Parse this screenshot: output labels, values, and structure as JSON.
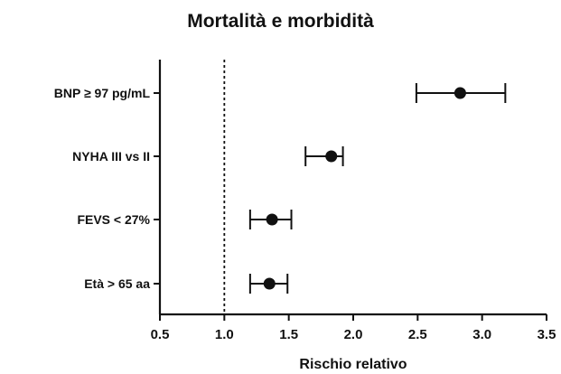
{
  "chart_data": {
    "type": "forest",
    "title": "Mortalità e morbidità",
    "xlabel": "Rischio relativo",
    "ylabel": "",
    "xlim": [
      0.5,
      3.5
    ],
    "x_ticks": [
      "0.5",
      "1.0",
      "1.5",
      "2.0",
      "2.5",
      "3.0",
      "3.5"
    ],
    "reference_line": 1.0,
    "grid": false,
    "series": [
      {
        "label": "BNP ≥ 97 pg/mL",
        "estimate": 2.83,
        "lower": 2.49,
        "upper": 3.18
      },
      {
        "label": "NYHA III vs II",
        "estimate": 1.83,
        "lower": 1.63,
        "upper": 1.92
      },
      {
        "label": "FEVS < 27%",
        "estimate": 1.37,
        "lower": 1.2,
        "upper": 1.52
      },
      {
        "label": "Età > 65 aa",
        "estimate": 1.35,
        "lower": 1.2,
        "upper": 1.49
      }
    ]
  }
}
